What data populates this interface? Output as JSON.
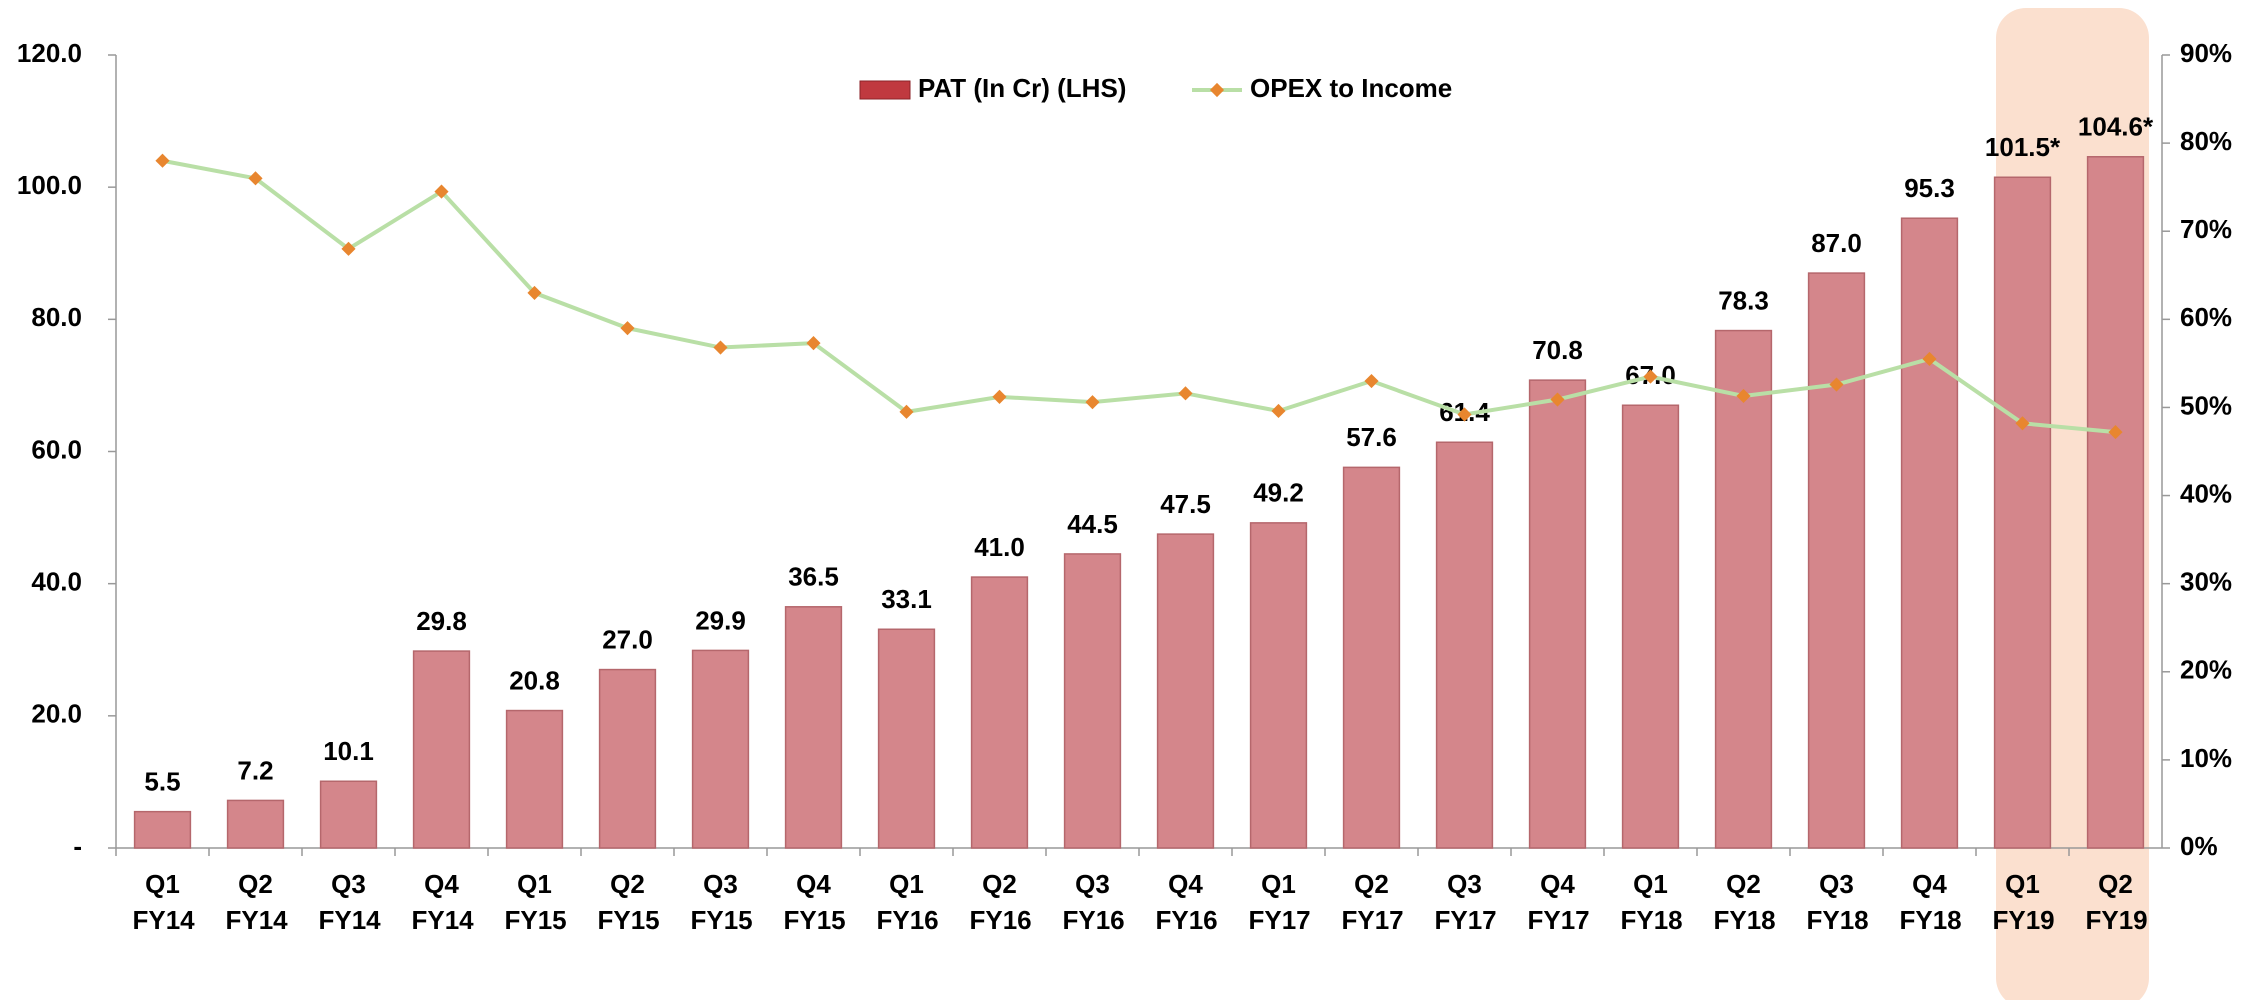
{
  "chart_data": {
    "type": "bar",
    "categories": [
      "Q1 FY14",
      "Q2 FY14",
      "Q3 FY14",
      "Q4 FY14",
      "Q1 FY15",
      "Q2 FY15",
      "Q3 FY15",
      "Q4 FY15",
      "Q1 FY16",
      "Q2 FY16",
      "Q3 FY16",
      "Q4 FY16",
      "Q1 FY17",
      "Q2 FY17",
      "Q3 FY17",
      "Q4 FY17",
      "Q1 FY18",
      "Q2 FY18",
      "Q3 FY18",
      "Q4 FY18",
      "Q1 FY19",
      "Q2 FY19"
    ],
    "series": [
      {
        "name": "PAT (In Cr) (LHS)",
        "type": "bar",
        "color": "#d4868b",
        "values": [
          5.5,
          7.2,
          10.1,
          29.8,
          20.8,
          27.0,
          29.9,
          36.5,
          33.1,
          41.0,
          44.5,
          47.5,
          49.2,
          57.6,
          61.4,
          70.8,
          67.0,
          78.3,
          87.0,
          95.3,
          101.5,
          104.6
        ],
        "value_labels": [
          "5.5",
          "7.2",
          "10.1",
          "29.8",
          "20.8",
          "27.0",
          "29.9",
          "36.5",
          "33.1",
          "41.0",
          "44.5",
          "47.5",
          "49.2",
          "57.6",
          "61.4",
          "70.8",
          "67.0",
          "78.3",
          "87.0",
          "95.3",
          "101.5*",
          "104.6*"
        ]
      },
      {
        "name": "OPEX to Income",
        "type": "line",
        "axis": "y2",
        "color": "#b9dfa6",
        "marker_color": "#e8862f",
        "values": [
          78,
          76,
          68,
          74.5,
          63,
          59,
          56.8,
          57.3,
          49.5,
          51.2,
          50.6,
          51.6,
          49.6,
          53,
          49.2,
          50.9,
          53.5,
          51.3,
          52.6,
          55.5,
          48.2,
          47.2
        ]
      }
    ],
    "ylim": [
      0,
      120
    ],
    "yticks": [
      {
        "value": 0,
        "label": "-"
      },
      {
        "value": 20,
        "label": "20.0"
      },
      {
        "value": 40,
        "label": "40.0"
      },
      {
        "value": 60,
        "label": "60.0"
      },
      {
        "value": 80,
        "label": "80.0"
      },
      {
        "value": 100,
        "label": "100.0"
      },
      {
        "value": 120,
        "label": "120.0"
      }
    ],
    "y2lim": [
      0,
      90
    ],
    "y2ticks": [
      {
        "value": 0,
        "label": "0%"
      },
      {
        "value": 10,
        "label": "10%"
      },
      {
        "value": 20,
        "label": "20%"
      },
      {
        "value": 30,
        "label": "30%"
      },
      {
        "value": 40,
        "label": "40%"
      },
      {
        "value": 50,
        "label": "50%"
      },
      {
        "value": 60,
        "label": "60%"
      },
      {
        "value": 70,
        "label": "70%"
      },
      {
        "value": 80,
        "label": "80%"
      },
      {
        "value": 90,
        "label": "90%"
      }
    ],
    "legend": "top"
  }
}
